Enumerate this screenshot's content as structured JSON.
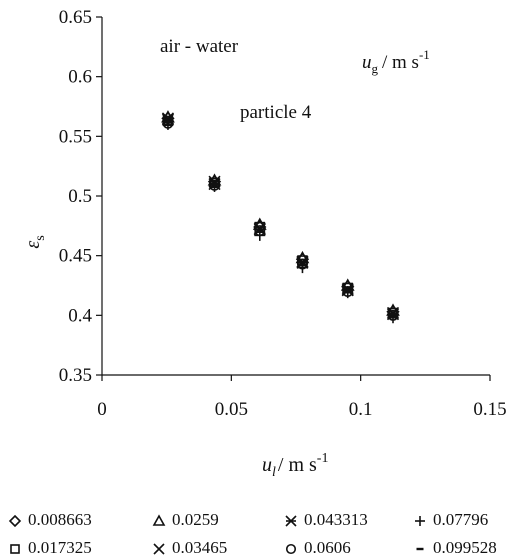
{
  "chart_data": {
    "type": "scatter",
    "title": "",
    "xlabel_main": "u",
    "xlabel_sub": "l",
    "xlabel_unit": "/ m s",
    "xlabel_exp": "-1",
    "ylabel_main": "ε",
    "ylabel_sub": "s",
    "xlim": [
      0,
      0.15
    ],
    "ylim": [
      0.35,
      0.65
    ],
    "xticks": [
      0,
      0.05,
      0.1,
      0.15
    ],
    "xtick_labels": [
      "0",
      "0.05",
      "0.1",
      "0.15"
    ],
    "yticks": [
      0.35,
      0.4,
      0.45,
      0.5,
      0.55,
      0.6,
      0.65
    ],
    "ytick_labels": [
      "0.35",
      "0.4",
      "0.45",
      "0.5",
      "0.55",
      "0.6",
      "0.65"
    ],
    "grid": false,
    "annotations": {
      "system": "air - water",
      "particle": "particle 4",
      "legend_title_main": "u",
      "legend_title_sub": "g",
      "legend_title_unit": "/ m s",
      "legend_title_exp": "-1"
    },
    "legend_position": "bottom",
    "series": [
      {
        "name": "0.008663",
        "marker": "diamond",
        "x": [
          0.0255,
          0.0435,
          0.061,
          0.0775,
          0.095,
          0.1125
        ],
        "y": [
          0.565,
          0.512,
          0.474,
          0.447,
          0.424,
          0.403
        ]
      },
      {
        "name": "0.017325",
        "marker": "square",
        "x": [
          0.0255,
          0.0435,
          0.061,
          0.0775,
          0.095,
          0.1125
        ],
        "y": [
          0.563,
          0.511,
          0.474,
          0.446,
          0.423,
          0.402
        ]
      },
      {
        "name": "0.0259",
        "marker": "triangle",
        "x": [
          0.0255,
          0.0435,
          0.061,
          0.0775,
          0.095,
          0.1125
        ],
        "y": [
          0.566,
          0.513,
          0.476,
          0.448,
          0.425,
          0.404
        ]
      },
      {
        "name": "0.03465",
        "marker": "x",
        "x": [
          0.0255,
          0.0435,
          0.061,
          0.0775,
          0.095,
          0.1125
        ],
        "y": [
          0.564,
          0.51,
          0.473,
          0.445,
          0.422,
          0.402
        ]
      },
      {
        "name": "0.043313",
        "marker": "asterisk",
        "x": [
          0.0255,
          0.0435,
          0.061,
          0.0775,
          0.095,
          0.1125
        ],
        "y": [
          0.565,
          0.512,
          0.472,
          0.444,
          0.421,
          0.401
        ]
      },
      {
        "name": "0.0606",
        "marker": "circle",
        "x": [
          0.0255,
          0.0435,
          0.061,
          0.0775,
          0.095,
          0.1125
        ],
        "y": [
          0.561,
          0.509,
          0.471,
          0.443,
          0.42,
          0.4
        ]
      },
      {
        "name": "0.07796",
        "marker": "plus",
        "x": [
          0.0255,
          0.0435,
          0.061,
          0.0775,
          0.095,
          0.1125
        ],
        "y": [
          0.56,
          0.508,
          0.467,
          0.44,
          0.419,
          0.398
        ]
      },
      {
        "name": "0.099528",
        "marker": "dash",
        "x": [
          0.0255,
          0.0435,
          0.061,
          0.0775,
          0.095,
          0.1125
        ],
        "y": [
          0.562,
          0.51,
          0.47,
          0.442,
          0.421,
          0.401
        ]
      }
    ]
  }
}
